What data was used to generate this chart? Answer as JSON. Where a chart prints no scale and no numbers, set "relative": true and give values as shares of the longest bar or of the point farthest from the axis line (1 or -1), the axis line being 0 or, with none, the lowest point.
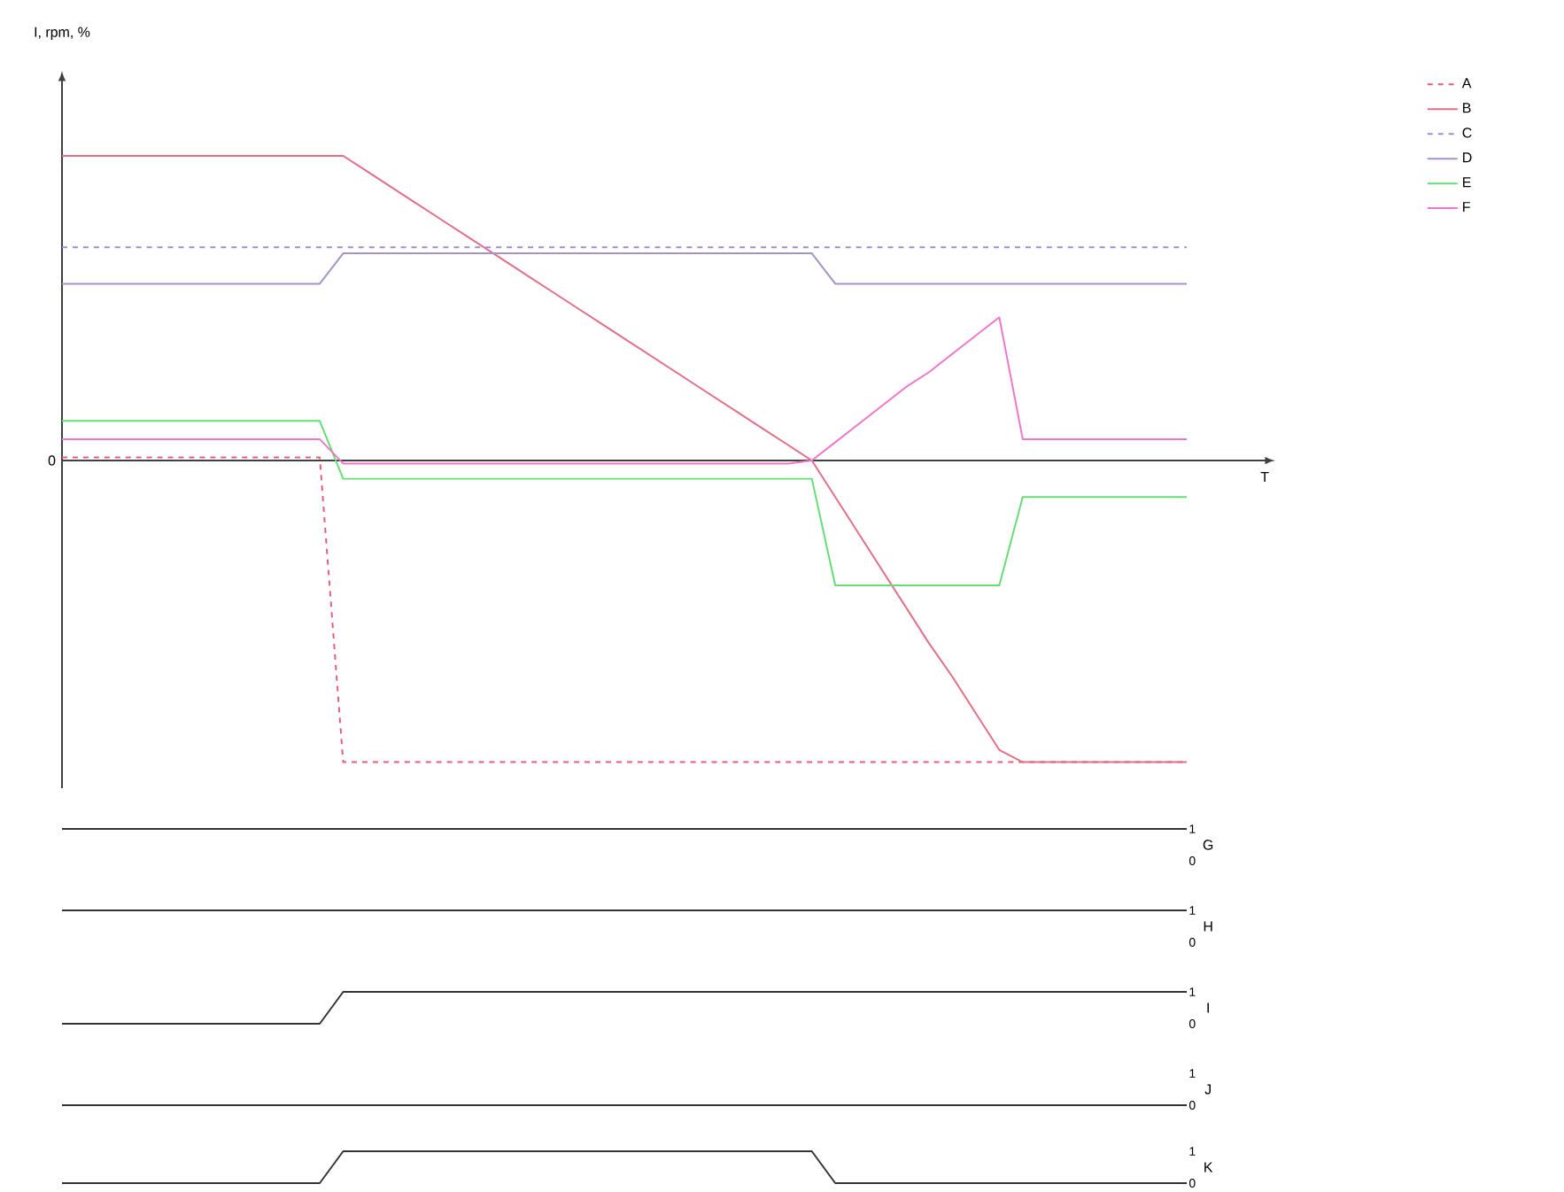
{
  "chart_data": [
    {
      "type": "line",
      "relative": true,
      "ylabel": "I, rpm, %",
      "xlabel": "T",
      "annotations": [
        "0"
      ],
      "legend": "right",
      "categories": [
        null,
        null,
        null,
        null,
        null,
        null,
        null,
        null,
        null,
        null,
        null,
        null,
        null,
        null,
        null,
        null,
        null,
        null,
        null,
        null,
        null,
        null,
        null,
        null,
        null,
        null,
        null,
        null,
        null,
        null,
        null,
        null,
        null,
        null,
        null,
        null,
        null,
        null,
        null,
        null,
        null,
        null,
        null,
        null,
        null,
        null,
        null,
        null,
        null
      ],
      "series": [
        {
          "name": "A",
          "color": "#e0607a",
          "line_style": "dashed",
          "values": [
            0.01,
            0.01,
            0.01,
            0.01,
            0.01,
            0.01,
            0.01,
            0.01,
            0.01,
            0.01,
            0.01,
            0.01,
            -0.99,
            -0.99,
            -0.99,
            -0.99,
            -0.99,
            -0.99,
            -0.99,
            -0.99,
            -0.99,
            -0.99,
            -0.99,
            -0.99,
            -0.99,
            -0.99,
            -0.99,
            -0.99,
            -0.99,
            -0.99,
            -0.99,
            -0.99,
            -0.99,
            -0.99,
            -0.99,
            -0.99,
            -0.99,
            -0.99,
            -0.99,
            -0.99,
            -0.99,
            -0.99,
            -0.99,
            -0.99,
            -0.99,
            -0.99,
            -0.99,
            -0.99,
            -0.99
          ]
        },
        {
          "name": "B",
          "color": "#e07088",
          "line_style": "solid",
          "values": [
            1.0,
            1.0,
            1.0,
            1.0,
            1.0,
            1.0,
            1.0,
            1.0,
            1.0,
            1.0,
            1.0,
            1.0,
            1.0,
            0.95,
            0.9,
            0.85,
            0.8,
            0.75,
            0.7,
            0.65,
            0.6,
            0.55,
            0.5,
            0.45,
            0.4,
            0.35,
            0.3,
            0.25,
            0.2,
            0.15,
            0.1,
            0.05,
            0,
            -0.12,
            -0.24,
            -0.36,
            -0.48,
            -0.6,
            -0.71,
            -0.83,
            -0.95,
            -0.99,
            -0.99,
            -0.99,
            -0.99,
            -0.99,
            -0.99,
            -0.99,
            -0.99
          ]
        },
        {
          "name": "C",
          "color": "#9a90d0",
          "line_style": "dashed",
          "values": [
            0.7,
            0.7,
            0.7,
            0.7,
            0.7,
            0.7,
            0.7,
            0.7,
            0.7,
            0.7,
            0.7,
            0.7,
            0.7,
            0.7,
            0.7,
            0.7,
            0.7,
            0.7,
            0.7,
            0.7,
            0.7,
            0.7,
            0.7,
            0.7,
            0.7,
            0.7,
            0.7,
            0.7,
            0.7,
            0.7,
            0.7,
            0.7,
            0.7,
            0.7,
            0.7,
            0.7,
            0.7,
            0.7,
            0.7,
            0.7,
            0.7,
            0.7,
            0.7,
            0.7,
            0.7,
            0.7,
            0.7,
            0.7,
            0.7
          ]
        },
        {
          "name": "D",
          "color": "#a494c4",
          "line_style": "solid",
          "values": [
            0.58,
            0.58,
            0.58,
            0.58,
            0.58,
            0.58,
            0.58,
            0.58,
            0.58,
            0.58,
            0.58,
            0.58,
            0.68,
            0.68,
            0.68,
            0.68,
            0.68,
            0.68,
            0.68,
            0.68,
            0.68,
            0.68,
            0.68,
            0.68,
            0.68,
            0.68,
            0.68,
            0.68,
            0.68,
            0.68,
            0.68,
            0.68,
            0.68,
            0.58,
            0.58,
            0.58,
            0.58,
            0.58,
            0.58,
            0.58,
            0.58,
            0.58,
            0.58,
            0.58,
            0.58,
            0.58,
            0.58,
            0.58,
            0.58
          ]
        },
        {
          "name": "E",
          "color": "#66dd77",
          "line_style": "solid",
          "values": [
            0.13,
            0.13,
            0.13,
            0.13,
            0.13,
            0.13,
            0.13,
            0.13,
            0.13,
            0.13,
            0.13,
            0.13,
            -0.06,
            -0.06,
            -0.06,
            -0.06,
            -0.06,
            -0.06,
            -0.06,
            -0.06,
            -0.06,
            -0.06,
            -0.06,
            -0.06,
            -0.06,
            -0.06,
            -0.06,
            -0.06,
            -0.06,
            -0.06,
            -0.06,
            -0.06,
            -0.06,
            -0.41,
            -0.41,
            -0.41,
            -0.41,
            -0.41,
            -0.41,
            -0.41,
            -0.41,
            -0.12,
            -0.12,
            -0.12,
            -0.12,
            -0.12,
            -0.12,
            -0.12,
            -0.12
          ]
        },
        {
          "name": "F",
          "color": "#ee77cc",
          "line_style": "solid",
          "values": [
            0.07,
            0.07,
            0.07,
            0.07,
            0.07,
            0.07,
            0.07,
            0.07,
            0.07,
            0.07,
            0.07,
            0.07,
            -0.01,
            -0.01,
            -0.01,
            -0.01,
            -0.01,
            -0.01,
            -0.01,
            -0.01,
            -0.01,
            -0.01,
            -0.01,
            -0.01,
            -0.01,
            -0.01,
            -0.01,
            -0.01,
            -0.01,
            -0.01,
            -0.01,
            -0.01,
            0,
            0.06,
            0.12,
            0.18,
            0.24,
            0.29,
            0.35,
            0.41,
            0.47,
            0.07,
            0.07,
            0.07,
            0.07,
            0.07,
            0.07,
            0.07,
            0.07
          ]
        }
      ]
    },
    {
      "type": "line",
      "ylabel": "G",
      "color": "#333333",
      "ylim": [
        0,
        1
      ],
      "yticks": [
        0,
        1
      ],
      "tick_labels": "y",
      "categories": [
        null,
        null,
        null,
        null,
        null,
        null,
        null,
        null,
        null,
        null,
        null,
        null,
        null,
        null,
        null,
        null,
        null,
        null,
        null,
        null,
        null,
        null,
        null,
        null,
        null,
        null,
        null,
        null,
        null,
        null,
        null,
        null,
        null,
        null,
        null,
        null,
        null,
        null,
        null,
        null,
        null,
        null,
        null,
        null,
        null,
        null,
        null,
        null,
        null
      ],
      "values": [
        1,
        1,
        1,
        1,
        1,
        1,
        1,
        1,
        1,
        1,
        1,
        1,
        1,
        1,
        1,
        1,
        1,
        1,
        1,
        1,
        1,
        1,
        1,
        1,
        1,
        1,
        1,
        1,
        1,
        1,
        1,
        1,
        1,
        1,
        1,
        1,
        1,
        1,
        1,
        1,
        1,
        1,
        1,
        1,
        1,
        1,
        1,
        1,
        1
      ]
    },
    {
      "type": "line",
      "ylabel": "H",
      "color": "#333333",
      "ylim": [
        0,
        1
      ],
      "yticks": [
        0,
        1
      ],
      "tick_labels": "y",
      "categories": [
        null,
        null,
        null,
        null,
        null,
        null,
        null,
        null,
        null,
        null,
        null,
        null,
        null,
        null,
        null,
        null,
        null,
        null,
        null,
        null,
        null,
        null,
        null,
        null,
        null,
        null,
        null,
        null,
        null,
        null,
        null,
        null,
        null,
        null,
        null,
        null,
        null,
        null,
        null,
        null,
        null,
        null,
        null,
        null,
        null,
        null,
        null,
        null,
        null
      ],
      "values": [
        1,
        1,
        1,
        1,
        1,
        1,
        1,
        1,
        1,
        1,
        1,
        1,
        1,
        1,
        1,
        1,
        1,
        1,
        1,
        1,
        1,
        1,
        1,
        1,
        1,
        1,
        1,
        1,
        1,
        1,
        1,
        1,
        1,
        1,
        1,
        1,
        1,
        1,
        1,
        1,
        1,
        1,
        1,
        1,
        1,
        1,
        1,
        1,
        1
      ]
    },
    {
      "type": "line",
      "ylabel": "I",
      "color": "#333333",
      "ylim": [
        0,
        1
      ],
      "yticks": [
        0,
        1
      ],
      "tick_labels": "y",
      "categories": [
        null,
        null,
        null,
        null,
        null,
        null,
        null,
        null,
        null,
        null,
        null,
        null,
        null,
        null,
        null,
        null,
        null,
        null,
        null,
        null,
        null,
        null,
        null,
        null,
        null,
        null,
        null,
        null,
        null,
        null,
        null,
        null,
        null,
        null,
        null,
        null,
        null,
        null,
        null,
        null,
        null,
        null,
        null,
        null,
        null,
        null,
        null,
        null,
        null
      ],
      "values": [
        0,
        0,
        0,
        0,
        0,
        0,
        0,
        0,
        0,
        0,
        0,
        0,
        1,
        1,
        1,
        1,
        1,
        1,
        1,
        1,
        1,
        1,
        1,
        1,
        1,
        1,
        1,
        1,
        1,
        1,
        1,
        1,
        1,
        1,
        1,
        1,
        1,
        1,
        1,
        1,
        1,
        1,
        1,
        1,
        1,
        1,
        1,
        1,
        1
      ]
    },
    {
      "type": "line",
      "ylabel": "J",
      "color": "#333333",
      "ylim": [
        0,
        1
      ],
      "yticks": [
        0,
        1
      ],
      "tick_labels": "y",
      "categories": [
        null,
        null,
        null,
        null,
        null,
        null,
        null,
        null,
        null,
        null,
        null,
        null,
        null,
        null,
        null,
        null,
        null,
        null,
        null,
        null,
        null,
        null,
        null,
        null,
        null,
        null,
        null,
        null,
        null,
        null,
        null,
        null,
        null,
        null,
        null,
        null,
        null,
        null,
        null,
        null,
        null,
        null,
        null,
        null,
        null,
        null,
        null,
        null,
        null
      ],
      "values": [
        0,
        0,
        0,
        0,
        0,
        0,
        0,
        0,
        0,
        0,
        0,
        0,
        0,
        0,
        0,
        0,
        0,
        0,
        0,
        0,
        0,
        0,
        0,
        0,
        0,
        0,
        0,
        0,
        0,
        0,
        0,
        0,
        0,
        0,
        0,
        0,
        0,
        0,
        0,
        0,
        0,
        0,
        0,
        0,
        0,
        0,
        0,
        0,
        0
      ]
    },
    {
      "type": "line",
      "ylabel": "K",
      "color": "#333333",
      "ylim": [
        0,
        1
      ],
      "yticks": [
        0,
        1
      ],
      "tick_labels": "y",
      "categories": [
        null,
        null,
        null,
        null,
        null,
        null,
        null,
        null,
        null,
        null,
        null,
        null,
        null,
        null,
        null,
        null,
        null,
        null,
        null,
        null,
        null,
        null,
        null,
        null,
        null,
        null,
        null,
        null,
        null,
        null,
        null,
        null,
        null,
        null,
        null,
        null,
        null,
        null,
        null,
        null,
        null,
        null,
        null,
        null,
        null,
        null,
        null,
        null,
        null
      ],
      "values": [
        0,
        0,
        0,
        0,
        0,
        0,
        0,
        0,
        0,
        0,
        0,
        0,
        1,
        1,
        1,
        1,
        1,
        1,
        1,
        1,
        1,
        1,
        1,
        1,
        1,
        1,
        1,
        1,
        1,
        1,
        1,
        1,
        1,
        0,
        0,
        0,
        0,
        0,
        0,
        0,
        0,
        0,
        0,
        0,
        0,
        0,
        0,
        0,
        0
      ]
    }
  ]
}
